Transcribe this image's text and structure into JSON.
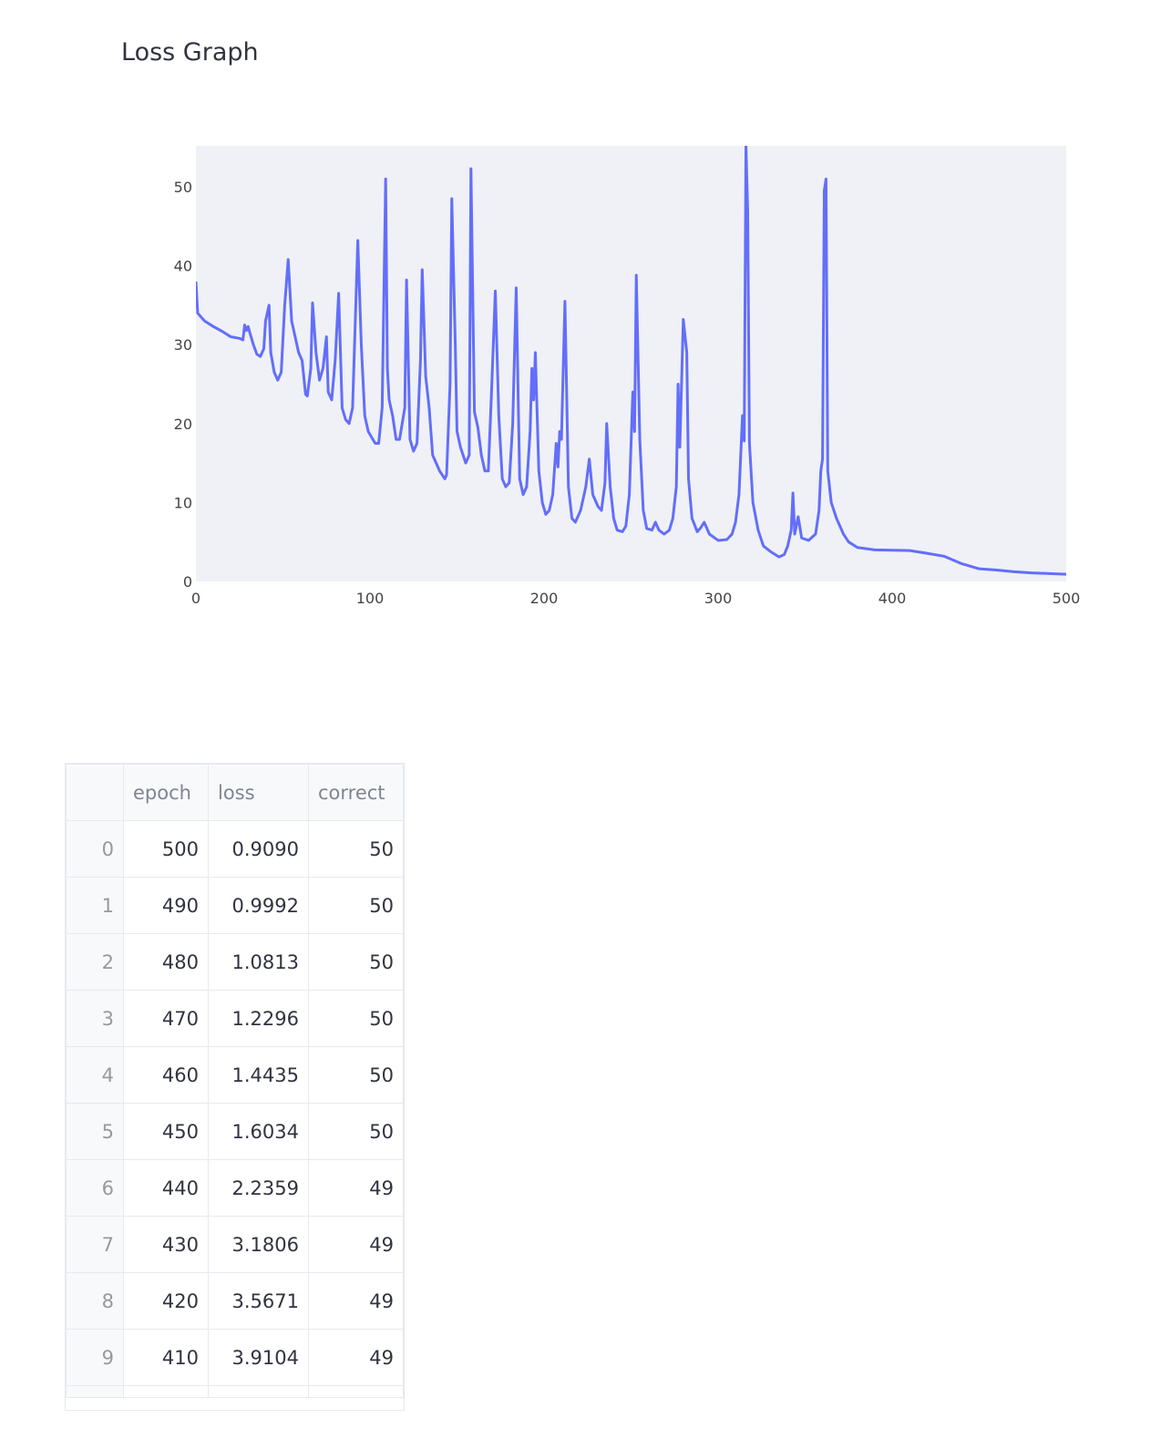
{
  "chart_data": {
    "type": "line",
    "title": "Loss Graph",
    "color": "#636efa",
    "grid": true,
    "xlim": [
      0,
      500
    ],
    "xticks": [
      0,
      100,
      200,
      300,
      400,
      500
    ],
    "ylim": [
      0,
      55.2
    ],
    "yticks": [
      0,
      10,
      20,
      30,
      40,
      50
    ],
    "x": [
      0,
      1,
      5,
      10,
      15,
      20,
      25,
      27,
      28,
      29,
      30,
      31,
      33,
      35,
      37,
      39,
      40,
      42,
      43,
      45,
      47,
      49,
      51,
      53,
      55,
      57,
      59,
      61,
      63,
      64,
      66,
      67,
      69,
      71,
      73,
      75,
      76,
      78,
      80,
      82,
      84,
      86,
      88,
      90,
      93,
      95,
      97,
      99,
      103,
      105,
      107,
      109,
      110,
      111,
      113,
      115,
      117,
      120,
      121,
      123,
      125,
      127,
      129,
      130,
      132,
      134,
      136,
      140,
      143,
      144,
      146,
      147,
      149,
      150,
      152,
      155,
      157,
      158,
      160,
      162,
      164,
      166,
      168,
      170,
      172,
      174,
      176,
      178,
      180,
      182,
      184,
      186,
      188,
      190,
      192,
      193,
      194,
      195,
      197,
      199,
      201,
      203,
      205,
      207,
      208,
      209,
      210,
      212,
      214,
      216,
      218,
      221,
      224,
      226,
      228,
      231,
      233,
      235,
      236,
      238,
      240,
      242,
      245,
      247,
      249,
      251,
      252,
      253,
      255,
      257,
      259,
      262,
      264,
      266,
      269,
      272,
      274,
      276,
      277,
      278,
      280,
      282,
      283,
      285,
      288,
      290,
      292,
      295,
      300,
      305,
      308,
      310,
      312,
      314,
      315,
      316,
      317,
      318,
      320,
      323,
      326,
      330,
      335,
      338,
      340,
      342,
      343,
      344,
      346,
      348,
      352,
      356,
      358,
      359,
      360,
      361,
      362,
      363,
      365,
      368,
      370,
      372,
      375,
      380,
      390,
      400,
      410,
      420,
      430,
      440,
      450,
      460,
      470,
      480,
      490,
      500
    ],
    "values": [
      38,
      34,
      33,
      32.3,
      31.7,
      31,
      30.8,
      30.6,
      32.5,
      31.8,
      32.3,
      31.5,
      30,
      28.8,
      28.5,
      29.5,
      33,
      35,
      29,
      26.5,
      25.5,
      26.5,
      35,
      40.8,
      33,
      31,
      29,
      28,
      23.7,
      23.5,
      27,
      35.3,
      29,
      25.5,
      27,
      31,
      24,
      23,
      28,
      36.5,
      22,
      20.5,
      20,
      22,
      43.2,
      30,
      21,
      19,
      17.5,
      17.5,
      22,
      51,
      27,
      23,
      21,
      18,
      18,
      22,
      38.2,
      18,
      16.5,
      17.5,
      28,
      39.5,
      26,
      22,
      16,
      14,
      13,
      13.5,
      25,
      48.5,
      30,
      19,
      17,
      15,
      16,
      52.3,
      21.5,
      19.5,
      16,
      14,
      14,
      25,
      36.8,
      21,
      13,
      12,
      12.5,
      20,
      37.2,
      13,
      11,
      12,
      19,
      27,
      23,
      29,
      14,
      10,
      8.5,
      9,
      11,
      17.5,
      14.5,
      19,
      18,
      35.5,
      12,
      8,
      7.5,
      9,
      12,
      15.5,
      11,
      9.5,
      9,
      12.5,
      20,
      12,
      8,
      6.5,
      6.3,
      7,
      11,
      24,
      19,
      38.8,
      18,
      9,
      6.7,
      6.5,
      7.5,
      6.5,
      6,
      6.5,
      8,
      12,
      25,
      17,
      33.2,
      29,
      13,
      8,
      6.3,
      6.8,
      7.5,
      6,
      5.2,
      5.3,
      6,
      7.5,
      11,
      21,
      17.8,
      55.2,
      47,
      17.5,
      10,
      6.5,
      4.5,
      3.8,
      3.1,
      3.4,
      4.5,
      6.5,
      11.2,
      6,
      8.2,
      5.5,
      5.2,
      6,
      9,
      14,
      15.5,
      49.5,
      51,
      14,
      10,
      8,
      7,
      6,
      5,
      4.3,
      4,
      3.95,
      3.91,
      3.57,
      3.18,
      2.24,
      1.6,
      1.44,
      1.23,
      1.08,
      1,
      0.909
    ]
  },
  "table": {
    "columns": [
      "",
      "epoch",
      "loss",
      "correct"
    ],
    "rows": [
      [
        "0",
        "500",
        "0.9090",
        "50"
      ],
      [
        "1",
        "490",
        "0.9992",
        "50"
      ],
      [
        "2",
        "480",
        "1.0813",
        "50"
      ],
      [
        "3",
        "470",
        "1.2296",
        "50"
      ],
      [
        "4",
        "460",
        "1.4435",
        "50"
      ],
      [
        "5",
        "450",
        "1.6034",
        "50"
      ],
      [
        "6",
        "440",
        "2.2359",
        "49"
      ],
      [
        "7",
        "430",
        "3.1806",
        "49"
      ],
      [
        "8",
        "420",
        "3.5671",
        "49"
      ],
      [
        "9",
        "410",
        "3.9104",
        "49"
      ]
    ]
  }
}
